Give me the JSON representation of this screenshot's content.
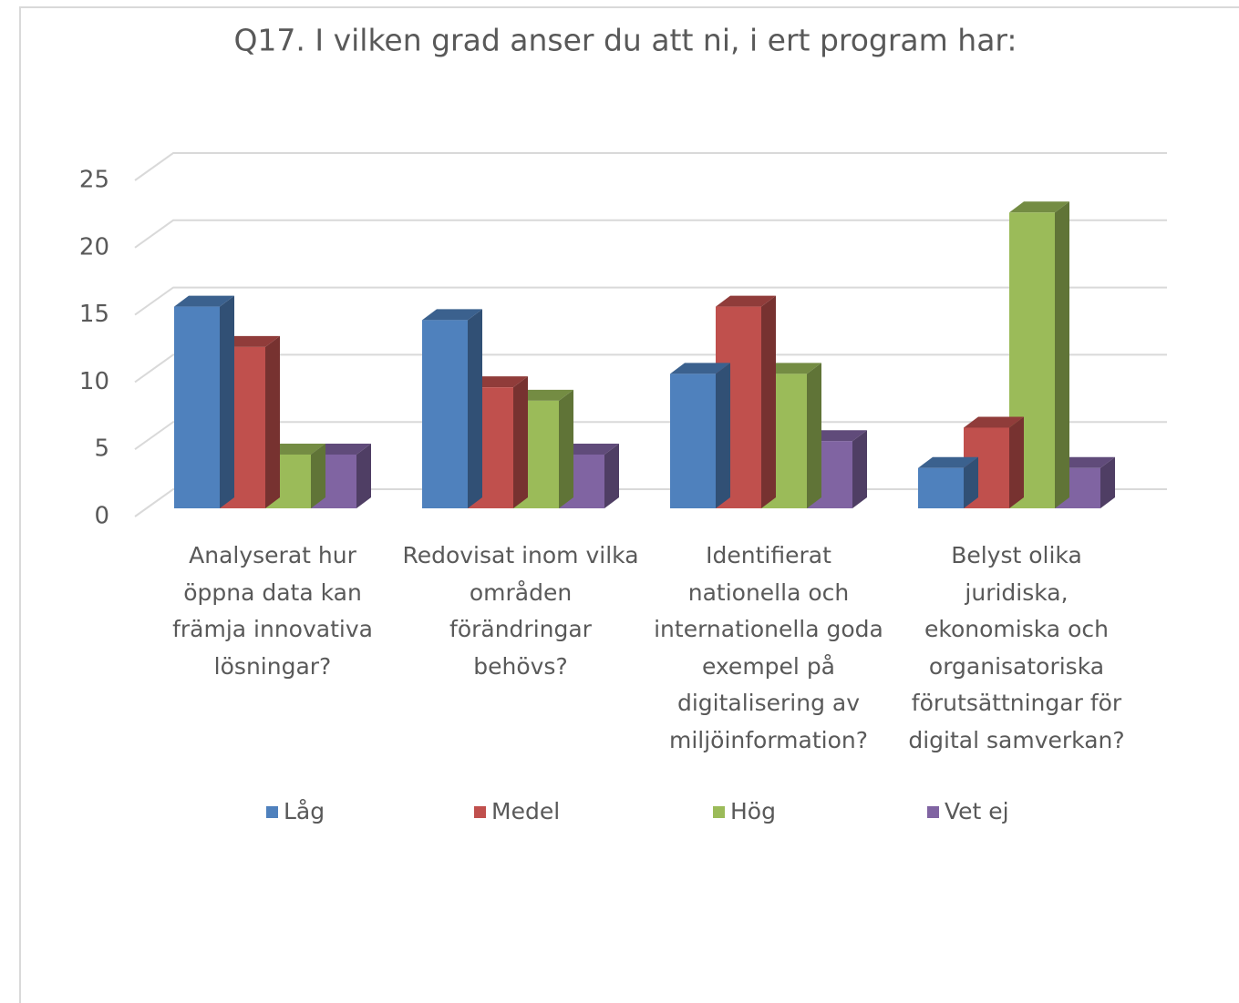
{
  "chart_data": {
    "type": "bar3d",
    "title": "Q17. I vilken grad anser du att ni, i ert program har:",
    "categories": [
      "Analyserat hur öppna data kan främja innovativa lösningar?",
      "Redovisat inom vilka områden förändringar behövs?",
      "Identifierat nationella och internationella goda exempel på digitalisering av miljöinformation?",
      "Belyst olika juridiska, ekonomiska och organisatoriska förutsättningar för digital samverkan?"
    ],
    "series": [
      {
        "name": "Låg",
        "color": "#4f81bd",
        "values": [
          15,
          14,
          10,
          3
        ]
      },
      {
        "name": "Medel",
        "color": "#c0504d",
        "values": [
          12,
          9,
          15,
          6
        ]
      },
      {
        "name": "Hög",
        "color": "#9bbb59",
        "values": [
          4,
          8,
          10,
          22
        ]
      },
      {
        "name": "Vet ej",
        "color": "#8064a2",
        "values": [
          4,
          4,
          5,
          3
        ]
      }
    ],
    "ylim": [
      0,
      25
    ],
    "yticks": [
      0,
      5,
      10,
      15,
      20,
      25
    ],
    "grid": true,
    "legend": "bottom"
  }
}
